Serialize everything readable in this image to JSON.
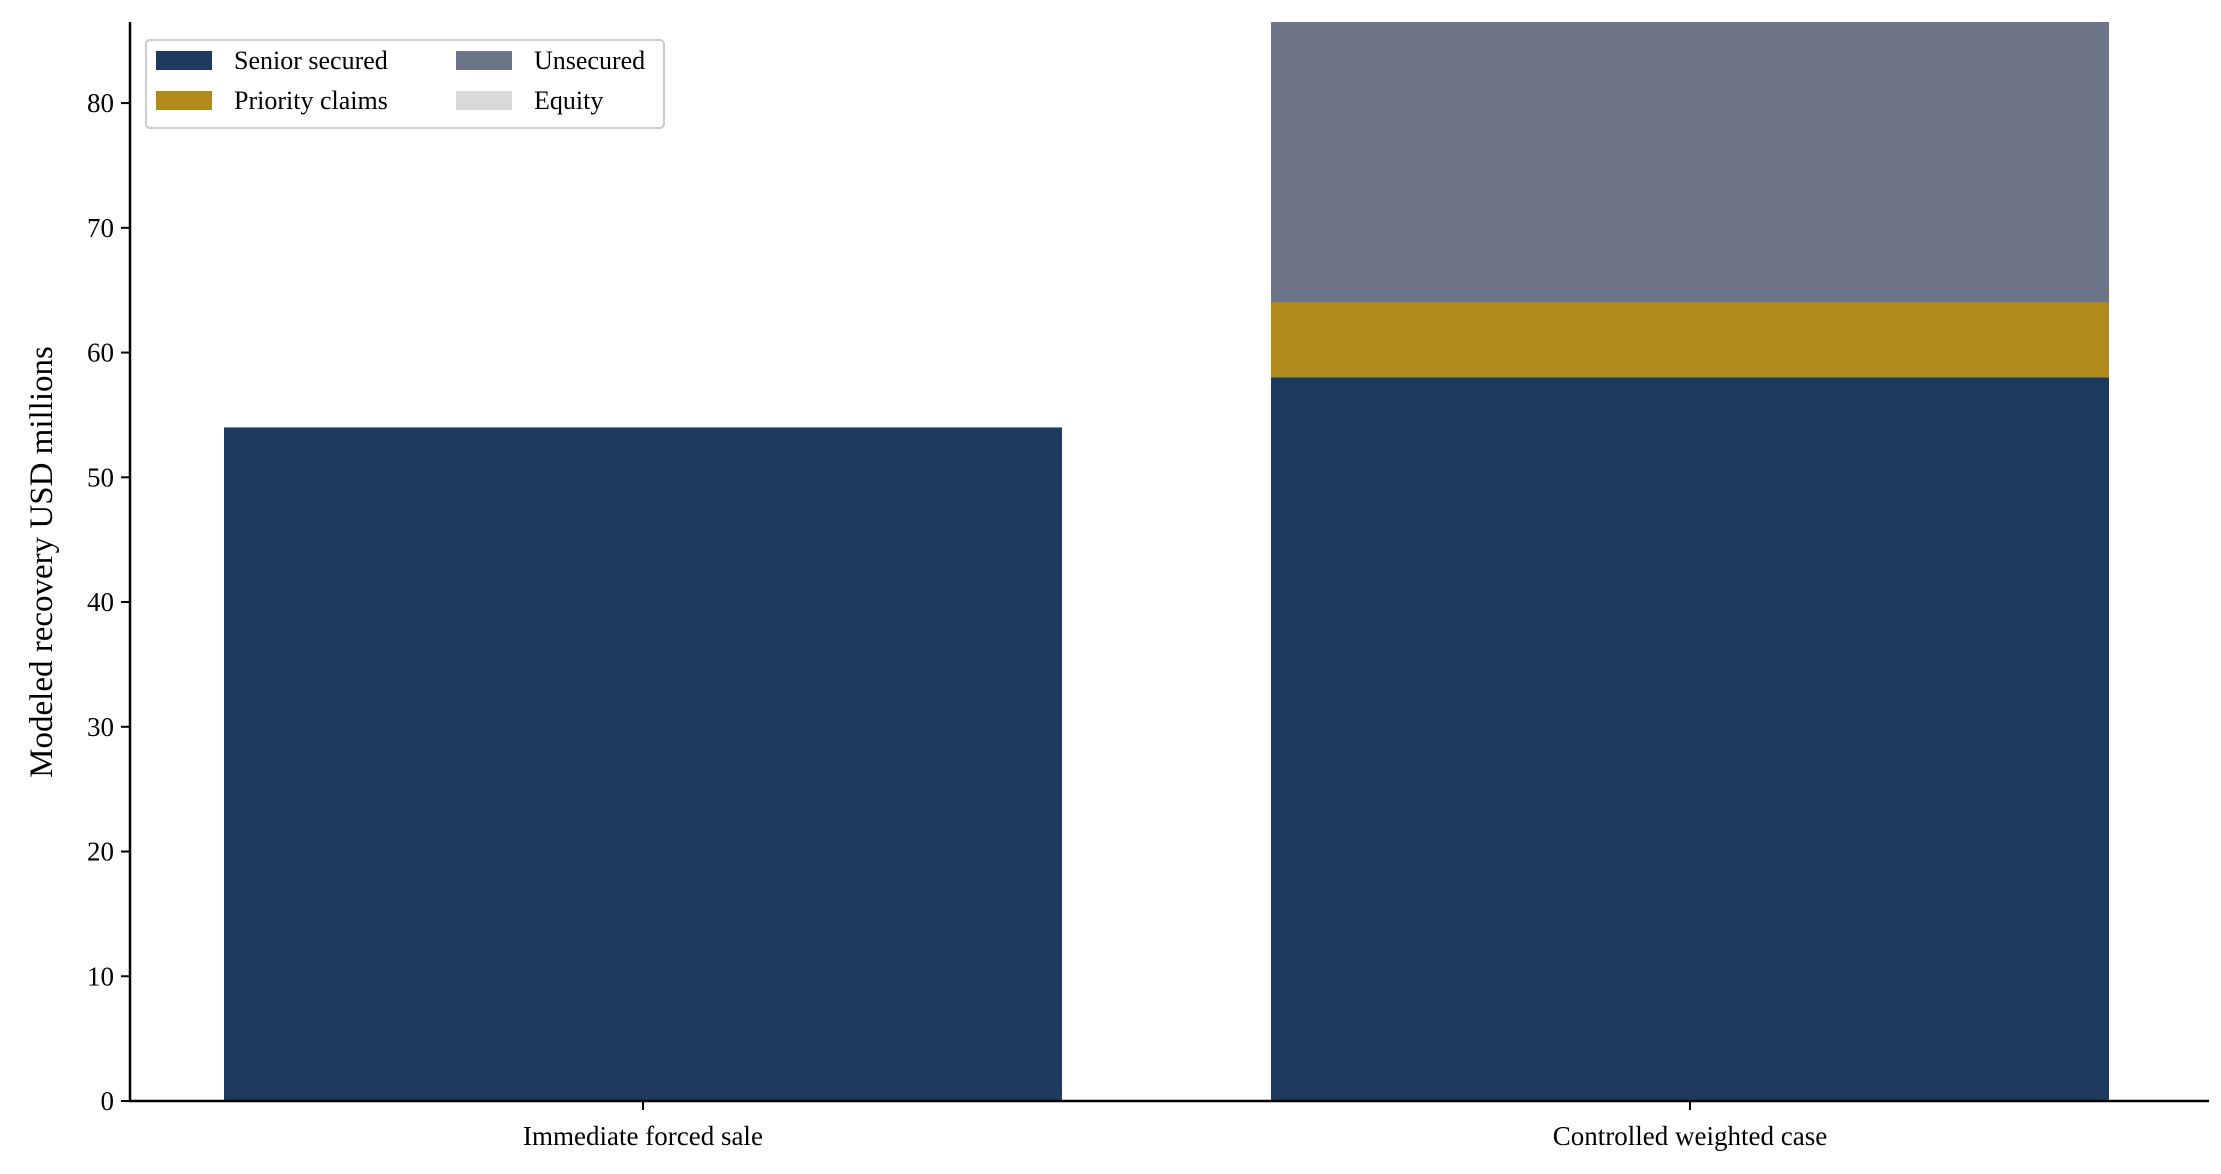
{
  "chart_data": {
    "type": "bar",
    "stacked": true,
    "categories": [
      "Immediate forced sale",
      "Controlled weighted case"
    ],
    "series": [
      {
        "name": "Senior secured",
        "values": [
          54,
          58
        ],
        "color": "#1f3a5f"
      },
      {
        "name": "Priority claims",
        "values": [
          0,
          6
        ],
        "color": "#b08a1a"
      },
      {
        "name": "Unsecured",
        "values": [
          0,
          22.5
        ],
        "color": "#6b7587"
      },
      {
        "name": "Equity",
        "values": [
          0,
          0
        ],
        "color": "#d9d9d9"
      }
    ],
    "title": "",
    "xlabel": "",
    "ylabel": "Modeled recovery USD millions",
    "ylim": [
      0,
      86.5
    ],
    "yticks": [
      0,
      10,
      20,
      30,
      40,
      50,
      60,
      70,
      80
    ],
    "grid": false,
    "legend_position": "top-left",
    "legend_columns": 2
  }
}
